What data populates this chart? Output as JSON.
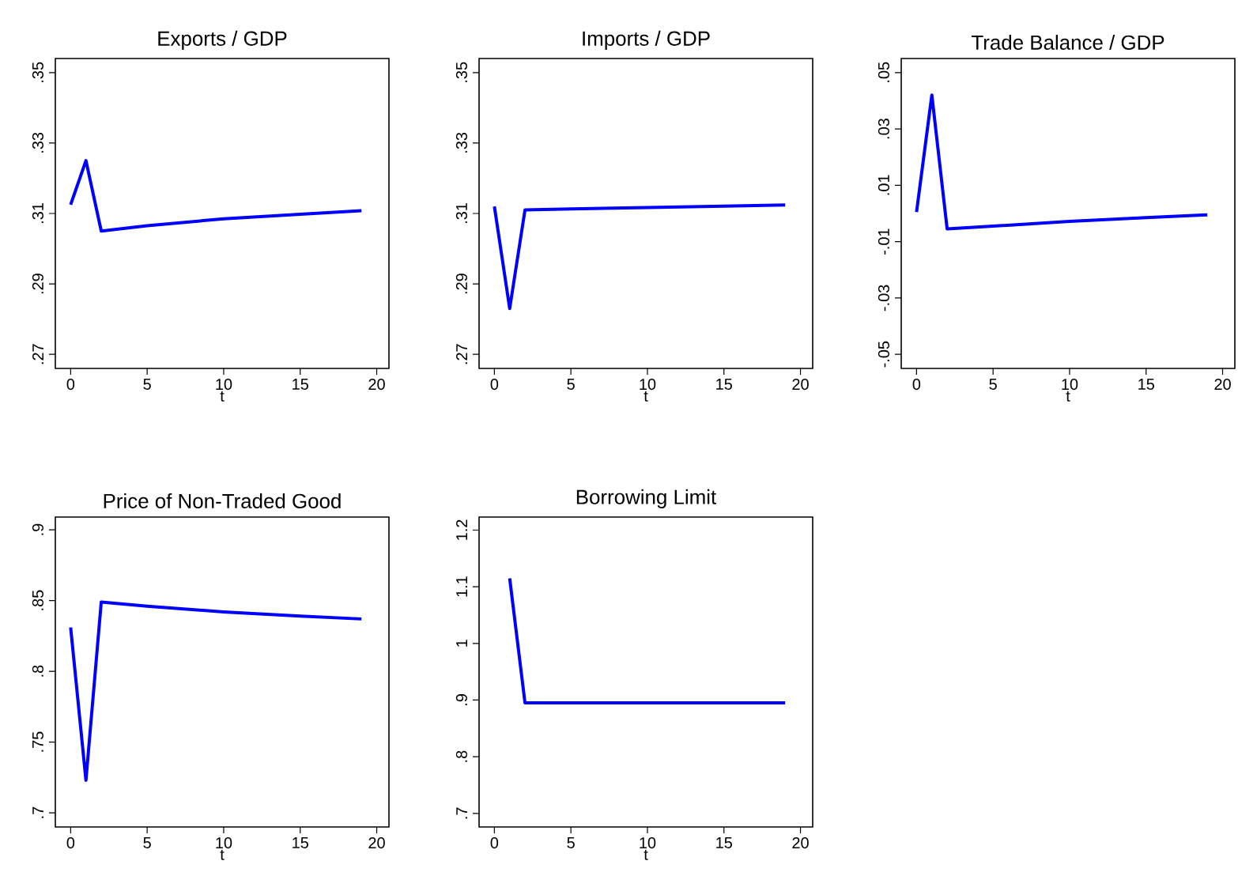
{
  "chart_data": [
    {
      "type": "line",
      "title": "Exports / GDP",
      "xlabel": "t",
      "color": "#0000ff",
      "x": [
        0,
        1,
        2,
        5,
        10,
        15,
        19
      ],
      "values": [
        0.3125,
        0.325,
        0.305,
        0.3065,
        0.3085,
        0.3098,
        0.3108
      ],
      "xlim": [
        -1,
        20.8
      ],
      "ylim": [
        0.266,
        0.354
      ],
      "xticks": [
        0,
        5,
        10,
        15,
        20
      ],
      "yticks": [
        {
          "value": 0.27,
          "label": ".27"
        },
        {
          "value": 0.29,
          "label": ".29"
        },
        {
          "value": 0.31,
          "label": ".31"
        },
        {
          "value": 0.33,
          "label": ".33"
        },
        {
          "value": 0.35,
          "label": ".35"
        }
      ]
    },
    {
      "type": "line",
      "title": "Imports / GDP",
      "xlabel": "t",
      "color": "#0000ff",
      "x": [
        0,
        1,
        2,
        5,
        10,
        15,
        19
      ],
      "values": [
        0.312,
        0.283,
        0.311,
        0.3113,
        0.3117,
        0.3121,
        0.3124
      ],
      "xlim": [
        -1,
        20.8
      ],
      "ylim": [
        0.266,
        0.354
      ],
      "xticks": [
        0,
        5,
        10,
        15,
        20
      ],
      "yticks": [
        {
          "value": 0.27,
          "label": ".27"
        },
        {
          "value": 0.29,
          "label": ".29"
        },
        {
          "value": 0.31,
          "label": ".31"
        },
        {
          "value": 0.33,
          "label": ".33"
        },
        {
          "value": 0.35,
          "label": ".35"
        }
      ]
    },
    {
      "type": "line",
      "title": "Trade Balance / GDP",
      "xlabel": "t",
      "color": "#0000ff",
      "x": [
        0,
        1,
        2,
        5,
        10,
        15,
        19
      ],
      "values": [
        0.0005,
        0.042,
        -0.0055,
        -0.0045,
        -0.0028,
        -0.0015,
        -0.0005
      ],
      "xlim": [
        -1,
        20.8
      ],
      "ylim": [
        -0.055,
        0.055
      ],
      "xticks": [
        0,
        5,
        10,
        15,
        20
      ],
      "yticks": [
        {
          "value": -0.05,
          "label": "-.05"
        },
        {
          "value": -0.03,
          "label": "-.03"
        },
        {
          "value": -0.01,
          "label": "-.01"
        },
        {
          "value": 0.01,
          "label": ".01"
        },
        {
          "value": 0.03,
          "label": ".03"
        },
        {
          "value": 0.05,
          "label": ".05"
        }
      ]
    },
    {
      "type": "line",
      "title": "Price of Non-Traded Good",
      "xlabel": "t",
      "color": "#0000ff",
      "x": [
        0,
        1,
        2,
        5,
        10,
        15,
        19
      ],
      "values": [
        0.831,
        0.723,
        0.849,
        0.846,
        0.842,
        0.839,
        0.837
      ],
      "xlim": [
        -1,
        20.8
      ],
      "ylim": [
        0.69,
        0.909
      ],
      "xticks": [
        0,
        5,
        10,
        15,
        20
      ],
      "yticks": [
        {
          "value": 0.7,
          "label": ".7"
        },
        {
          "value": 0.75,
          "label": ".75"
        },
        {
          "value": 0.8,
          "label": ".8"
        },
        {
          "value": 0.85,
          "label": ".85"
        },
        {
          "value": 0.9,
          "label": ".9"
        }
      ]
    },
    {
      "type": "line",
      "title": "Borrowing Limit",
      "xlabel": "t",
      "color": "#0000ff",
      "x": [
        1,
        2,
        19
      ],
      "values": [
        1.115,
        0.895,
        0.895
      ],
      "xlim": [
        -1,
        20.8
      ],
      "ylim": [
        0.676,
        1.223
      ],
      "xticks": [
        0,
        5,
        10,
        15,
        20
      ],
      "yticks": [
        {
          "value": 0.7,
          "label": ".7"
        },
        {
          "value": 0.8,
          "label": ".8"
        },
        {
          "value": 0.9,
          "label": ".9"
        },
        {
          "value": 1,
          "label": "1"
        },
        {
          "value": 1.1,
          "label": "1.1"
        },
        {
          "value": 1.2,
          "label": "1.2"
        }
      ]
    }
  ]
}
